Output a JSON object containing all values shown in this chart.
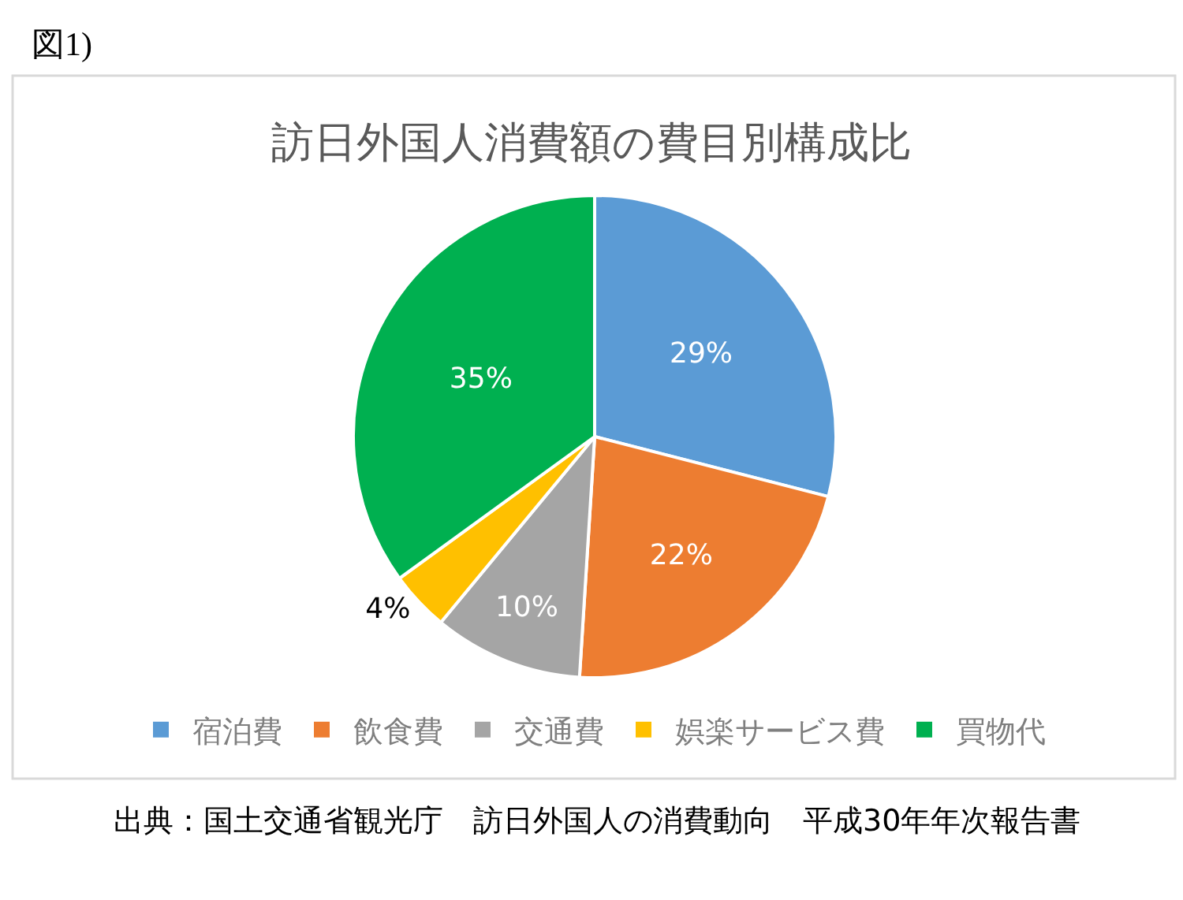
{
  "chart_data": {
    "type": "pie",
    "title": "訪日外国人消費額の費目別構成比",
    "categories": [
      "宿泊費",
      "飲食費",
      "交通費",
      "娯楽サービス費",
      "買物代"
    ],
    "values": [
      29,
      22,
      10,
      4,
      35
    ],
    "colors": [
      "#5b9bd5",
      "#ed7d31",
      "#a5a5a5",
      "#ffc000",
      "#00b050"
    ],
    "value_labels": [
      "29%",
      "22%",
      "10%",
      "4%",
      "35%"
    ],
    "legend": "bottom",
    "annotations": [
      "図1)",
      "出典：国土交通省観光庁　訪日外国人の消費動向　平成30年年次報告書"
    ]
  }
}
